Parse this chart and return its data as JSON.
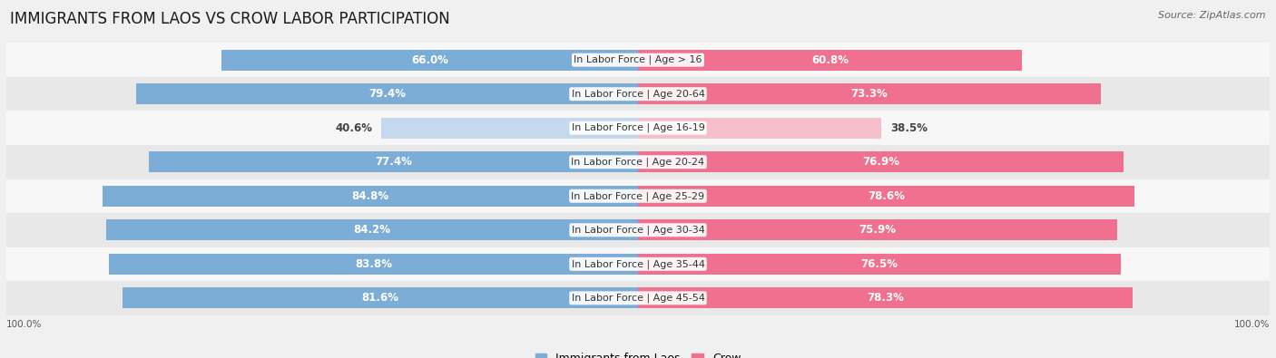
{
  "title": "IMMIGRANTS FROM LAOS VS CROW LABOR PARTICIPATION",
  "source": "Source: ZipAtlas.com",
  "categories": [
    "In Labor Force | Age > 16",
    "In Labor Force | Age 20-64",
    "In Labor Force | Age 16-19",
    "In Labor Force | Age 20-24",
    "In Labor Force | Age 25-29",
    "In Labor Force | Age 30-34",
    "In Labor Force | Age 35-44",
    "In Labor Force | Age 45-54"
  ],
  "laos_values": [
    66.0,
    79.4,
    40.6,
    77.4,
    84.8,
    84.2,
    83.8,
    81.6
  ],
  "crow_values": [
    60.8,
    73.3,
    38.5,
    76.9,
    78.6,
    75.9,
    76.5,
    78.3
  ],
  "laos_color_full": "#7badd6",
  "laos_color_light": "#c5d9ee",
  "crow_color_full": "#f07090",
  "crow_color_light": "#f5c0cc",
  "bar_height": 0.62,
  "bg_color": "#f0f0f0",
  "row_bg_light": "#f7f7f7",
  "row_bg_dark": "#e8e8e8",
  "label_fontsize": 8.5,
  "title_fontsize": 12,
  "source_fontsize": 8,
  "legend_fontsize": 9,
  "max_val": 100.0,
  "axis_label": "100.0%"
}
